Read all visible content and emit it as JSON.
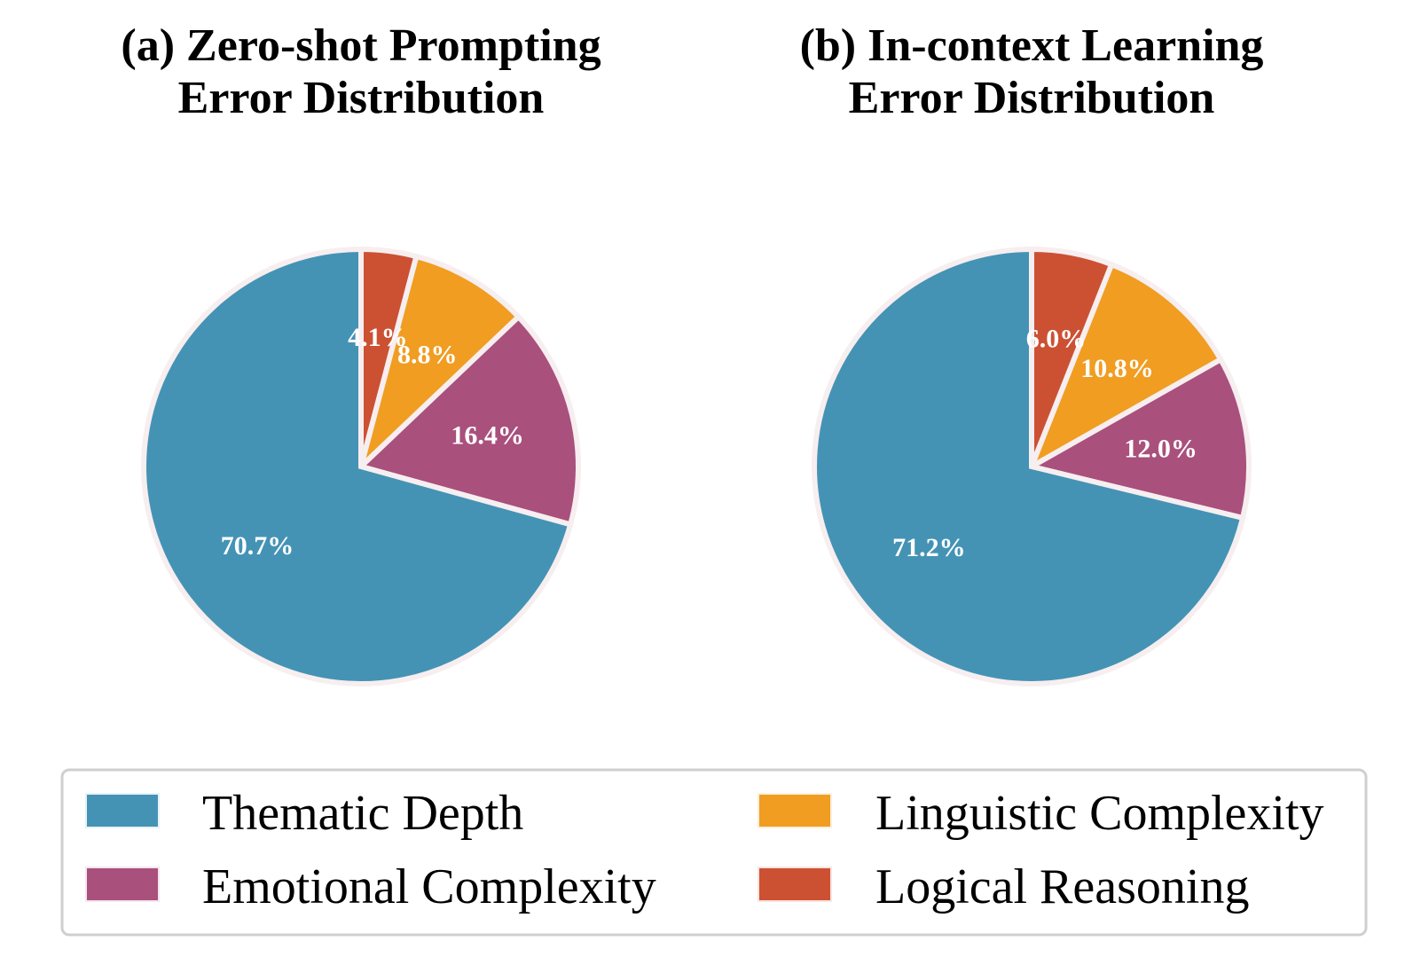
{
  "chart_data": [
    {
      "type": "pie",
      "title_lines": [
        "(a) Zero-shot Prompting",
        "Error Distribution"
      ],
      "categories": [
        "Thematic Depth",
        "Emotional Complexity",
        "Linguistic Complexity",
        "Logical Reasoning"
      ],
      "values": [
        70.7,
        16.4,
        8.8,
        4.1
      ],
      "labels": [
        "70.7%",
        "16.4%",
        "8.8%",
        "4.1%"
      ]
    },
    {
      "type": "pie",
      "title_lines": [
        "(b) In-context Learning",
        "Error Distribution"
      ],
      "categories": [
        "Thematic Depth",
        "Emotional Complexity",
        "Linguistic Complexity",
        "Logical Reasoning"
      ],
      "values": [
        71.2,
        12.0,
        10.8,
        6.0
      ],
      "labels": [
        "71.2%",
        "12.0%",
        "10.8%",
        "6.0%"
      ]
    }
  ],
  "colors": {
    "Thematic Depth": "#4493b5",
    "Emotional Complexity": "#a9507d",
    "Linguistic Complexity": "#f09d22",
    "Logical Reasoning": "#cc5133"
  },
  "legend": {
    "items": [
      {
        "label": "Thematic Depth",
        "color": "#4493b5"
      },
      {
        "label": "Linguistic Complexity",
        "color": "#f09d22"
      },
      {
        "label": "Emotional Complexity",
        "color": "#a9507d"
      },
      {
        "label": "Logical Reasoning",
        "color": "#cc5133"
      }
    ]
  }
}
